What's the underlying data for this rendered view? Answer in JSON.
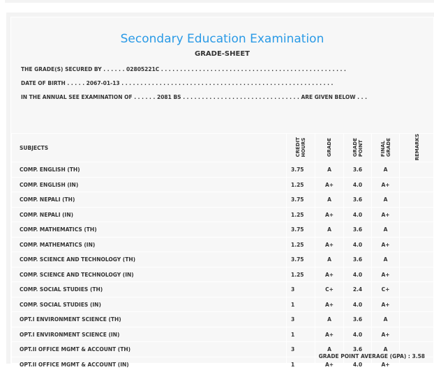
{
  "title": "Secondary Education Examination",
  "subtitle": "GRADE-SHEET",
  "info": {
    "secured_by": "THE GRADE(S) SECURED BY . . . . . . 02805221C . . . . . . . . . . . . . . . . . . . . . . . . . . . . . . . . . . . . . . . . . . . . . . . . .",
    "dob": "DATE OF BIRTH . . . . . 2067-01-13 . . . . . . . . . . . . . . . . . . . . . . . . . . . . . . . . . . . . . . . . . . . . . . . . . . . . . . . .",
    "exam": "IN THE ANNUAL SEE EXAMINATION OF . . . . . . 2081 BS . . . . . . . . . . . . . . . . . . . . . . . . . . . . . . . ARE GIVEN BELOW . . ."
  },
  "headers": [
    "SUBJECTS",
    "CREDIT\nHOURS",
    "GRADE",
    "GRADE\nPOINT",
    "FINAL\nGRADE",
    "REMARKS"
  ],
  "rows": [
    [
      "COMP. ENGLISH (TH)",
      "3.75",
      "A",
      "3.6",
      "A",
      ""
    ],
    [
      "COMP. ENGLISH (IN)",
      "1.25",
      "A+",
      "4.0",
      "A+",
      ""
    ],
    [
      "COMP. NEPALI (TH)",
      "3.75",
      "A",
      "3.6",
      "A",
      ""
    ],
    [
      "COMP. NEPALI (IN)",
      "1.25",
      "A+",
      "4.0",
      "A+",
      ""
    ],
    [
      "COMP. MATHEMATICS (TH)",
      "3.75",
      "A",
      "3.6",
      "A",
      ""
    ],
    [
      "COMP. MATHEMATICS (IN)",
      "1.25",
      "A+",
      "4.0",
      "A+",
      ""
    ],
    [
      "COMP. SCIENCE AND TECHNOLOGY (TH)",
      "3.75",
      "A",
      "3.6",
      "A",
      ""
    ],
    [
      "COMP. SCIENCE AND TECHNOLOGY (IN)",
      "1.25",
      "A+",
      "4.0",
      "A+",
      ""
    ],
    [
      "COMP. SOCIAL STUDIES (TH)",
      "3",
      "C+",
      "2.4",
      "C+",
      ""
    ],
    [
      "COMP. SOCIAL STUDIES (IN)",
      "1",
      "A+",
      "4.0",
      "A+",
      ""
    ],
    [
      "OPT.I ENVIRONMENT SCIENCE (TH)",
      "3",
      "A",
      "3.6",
      "A",
      ""
    ],
    [
      "OPT.I ENVIRONMENT SCIENCE (IN)",
      "1",
      "A+",
      "4.0",
      "A+",
      ""
    ],
    [
      "OPT.II OFFICE MGMT & ACCOUNT (TH)",
      "3",
      "A",
      "3.6",
      "A",
      ""
    ],
    [
      "OPT.II OFFICE MGMT & ACCOUNT (IN)",
      "1",
      "A+",
      "4.0",
      "A+",
      ""
    ]
  ],
  "gpa": "GRADE POINT AVERAGE (GPA) : 3.58"
}
